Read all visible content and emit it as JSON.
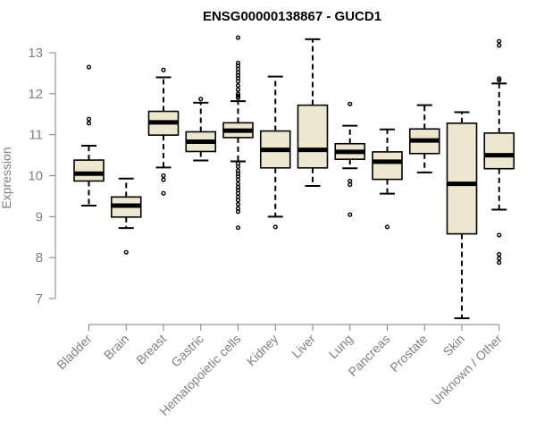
{
  "chart_data": {
    "type": "boxplot",
    "title": "ENSG00000138867 - GUCD1",
    "xlabel": "",
    "ylabel": "Expression",
    "ylim": [
      6.4,
      13.5
    ],
    "yticks": [
      7,
      8,
      9,
      10,
      11,
      12,
      13
    ],
    "grid": false,
    "colors": {
      "box_fill": "#ede7cf",
      "median": "#000000",
      "axis": "#808080",
      "text": "#808080",
      "title": "#000000"
    },
    "categories": [
      "Bladder",
      "Brain",
      "Breast",
      "Gastric",
      "Hematopoietic cells",
      "Kidney",
      "Liver",
      "Lung",
      "Pancreas",
      "Prostate",
      "Skin",
      "Unknown / Other"
    ],
    "boxes": [
      {
        "name": "Bladder",
        "min": 9.27,
        "q1": 9.87,
        "median": 10.05,
        "q3": 10.38,
        "max": 10.73,
        "outliers": [
          11.28,
          11.38,
          12.65
        ]
      },
      {
        "name": "Brain",
        "min": 8.72,
        "q1": 8.99,
        "median": 9.27,
        "q3": 9.48,
        "max": 9.93,
        "outliers": [
          8.13
        ]
      },
      {
        "name": "Breast",
        "min": 10.2,
        "q1": 10.99,
        "median": 11.3,
        "q3": 11.57,
        "max": 12.4,
        "outliers": [
          12.58,
          9.57,
          9.9,
          10.0
        ]
      },
      {
        "name": "Gastric",
        "min": 10.37,
        "q1": 10.59,
        "median": 10.83,
        "q3": 11.07,
        "max": 11.78,
        "outliers": [
          11.87
        ]
      },
      {
        "name": "Hematopoietic cells",
        "min": 10.35,
        "q1": 10.93,
        "median": 11.1,
        "q3": 11.29,
        "max": 11.82,
        "outliers": [
          13.37,
          12.75,
          12.68,
          12.6,
          12.52,
          12.45,
          12.38,
          12.3,
          12.2,
          12.1,
          12.0,
          11.95,
          11.9,
          10.3,
          10.22,
          10.12,
          10.05,
          9.98,
          9.9,
          9.8,
          9.72,
          9.65,
          9.57,
          9.48,
          9.4,
          9.3,
          9.2,
          9.12,
          8.73
        ]
      },
      {
        "name": "Kidney",
        "min": 9.0,
        "q1": 10.19,
        "median": 10.63,
        "q3": 11.09,
        "max": 12.42,
        "outliers": [
          8.75
        ]
      },
      {
        "name": "Liver",
        "min": 9.75,
        "q1": 10.19,
        "median": 10.63,
        "q3": 11.72,
        "max": 13.33,
        "outliers": []
      },
      {
        "name": "Lung",
        "min": 10.18,
        "q1": 10.4,
        "median": 10.58,
        "q3": 10.78,
        "max": 11.22,
        "outliers": [
          11.75,
          9.87,
          9.78,
          9.05
        ]
      },
      {
        "name": "Pancreas",
        "min": 9.56,
        "q1": 9.91,
        "median": 10.34,
        "q3": 10.58,
        "max": 11.13,
        "outliers": [
          8.75
        ]
      },
      {
        "name": "Prostate",
        "min": 10.08,
        "q1": 10.54,
        "median": 10.86,
        "q3": 11.14,
        "max": 11.72,
        "outliers": []
      },
      {
        "name": "Skin",
        "min": 6.52,
        "q1": 8.58,
        "median": 9.8,
        "q3": 11.28,
        "max": 11.55,
        "outliers": []
      },
      {
        "name": "Unknown / Other",
        "min": 9.17,
        "q1": 10.17,
        "median": 10.5,
        "q3": 11.04,
        "max": 12.25,
        "outliers": [
          13.28,
          13.18,
          12.37,
          12.33,
          8.55,
          8.08,
          7.98,
          7.88
        ]
      }
    ]
  }
}
